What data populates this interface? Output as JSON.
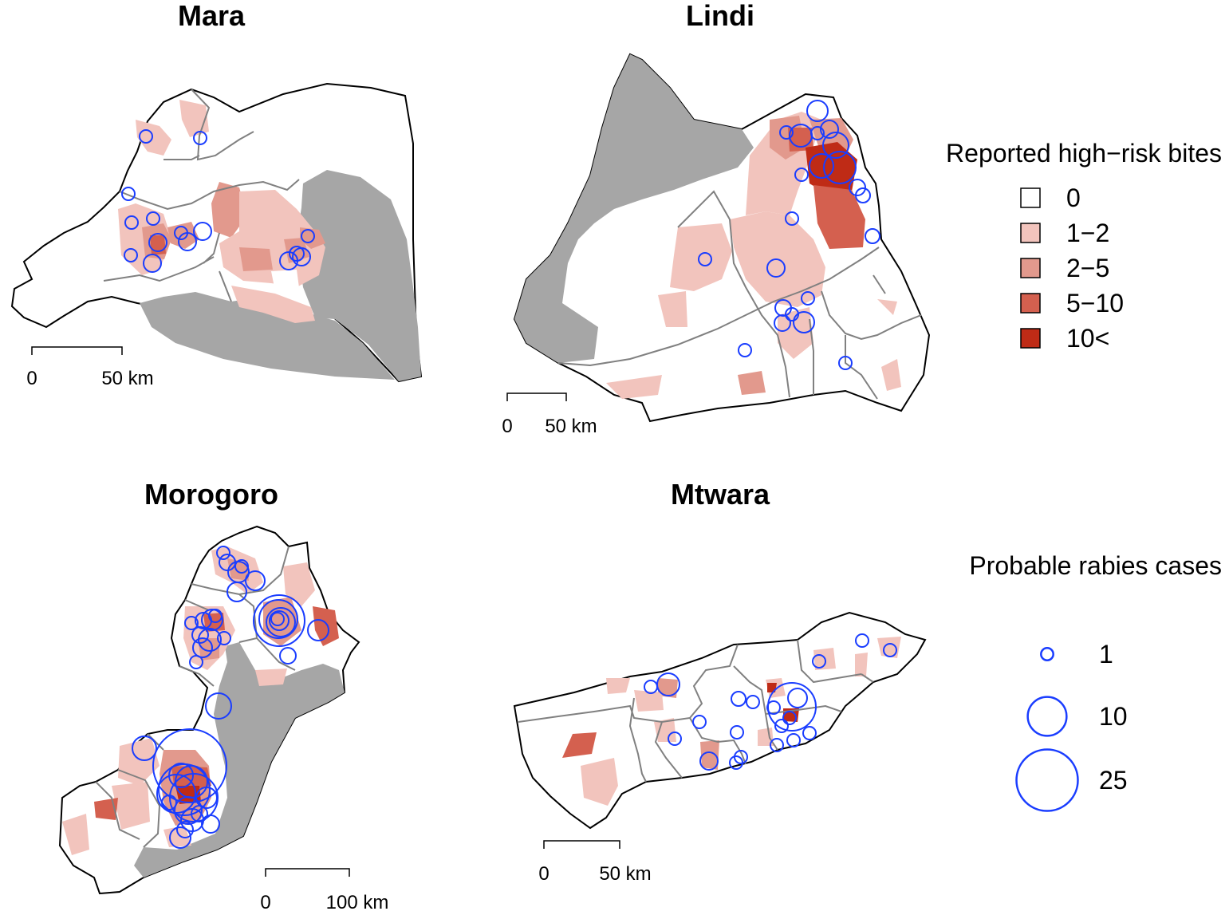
{
  "colors": {
    "bite_0": "#ffffff",
    "bite_1_2": "#f2c4bd",
    "bite_2_5": "#e2998d",
    "bite_5_10": "#d4604f",
    "bite_10_plus": "#bf2b16",
    "no_data": "#a6a6a6",
    "case_circle": "#1a3dff",
    "district_border": "#808080"
  },
  "panels": {
    "mara": {
      "title": "Mara",
      "scale": {
        "zero": "0",
        "end": "50 km"
      }
    },
    "lindi": {
      "title": "Lindi",
      "scale": {
        "zero": "0",
        "end": "50 km"
      }
    },
    "morogoro": {
      "title": "Morogoro",
      "scale": {
        "zero": "0",
        "end": "100 km"
      }
    },
    "mtwara": {
      "title": "Mtwara",
      "scale": {
        "zero": "0",
        "end": "50 km"
      }
    }
  },
  "legend_bites": {
    "title": "Reported high−risk bites",
    "items": [
      {
        "label": "0",
        "color": "#ffffff"
      },
      {
        "label": "1−2",
        "color": "#f2c4bd"
      },
      {
        "label": "2−5",
        "color": "#e2998d"
      },
      {
        "label": "5−10",
        "color": "#d4604f"
      },
      {
        "label": "10<",
        "color": "#bf2b16"
      }
    ]
  },
  "legend_cases": {
    "title": "Probable rabies cases",
    "items": [
      {
        "label": "1",
        "value": 1
      },
      {
        "label": "10",
        "value": 10
      },
      {
        "label": "25",
        "value": 25
      }
    ]
  }
}
